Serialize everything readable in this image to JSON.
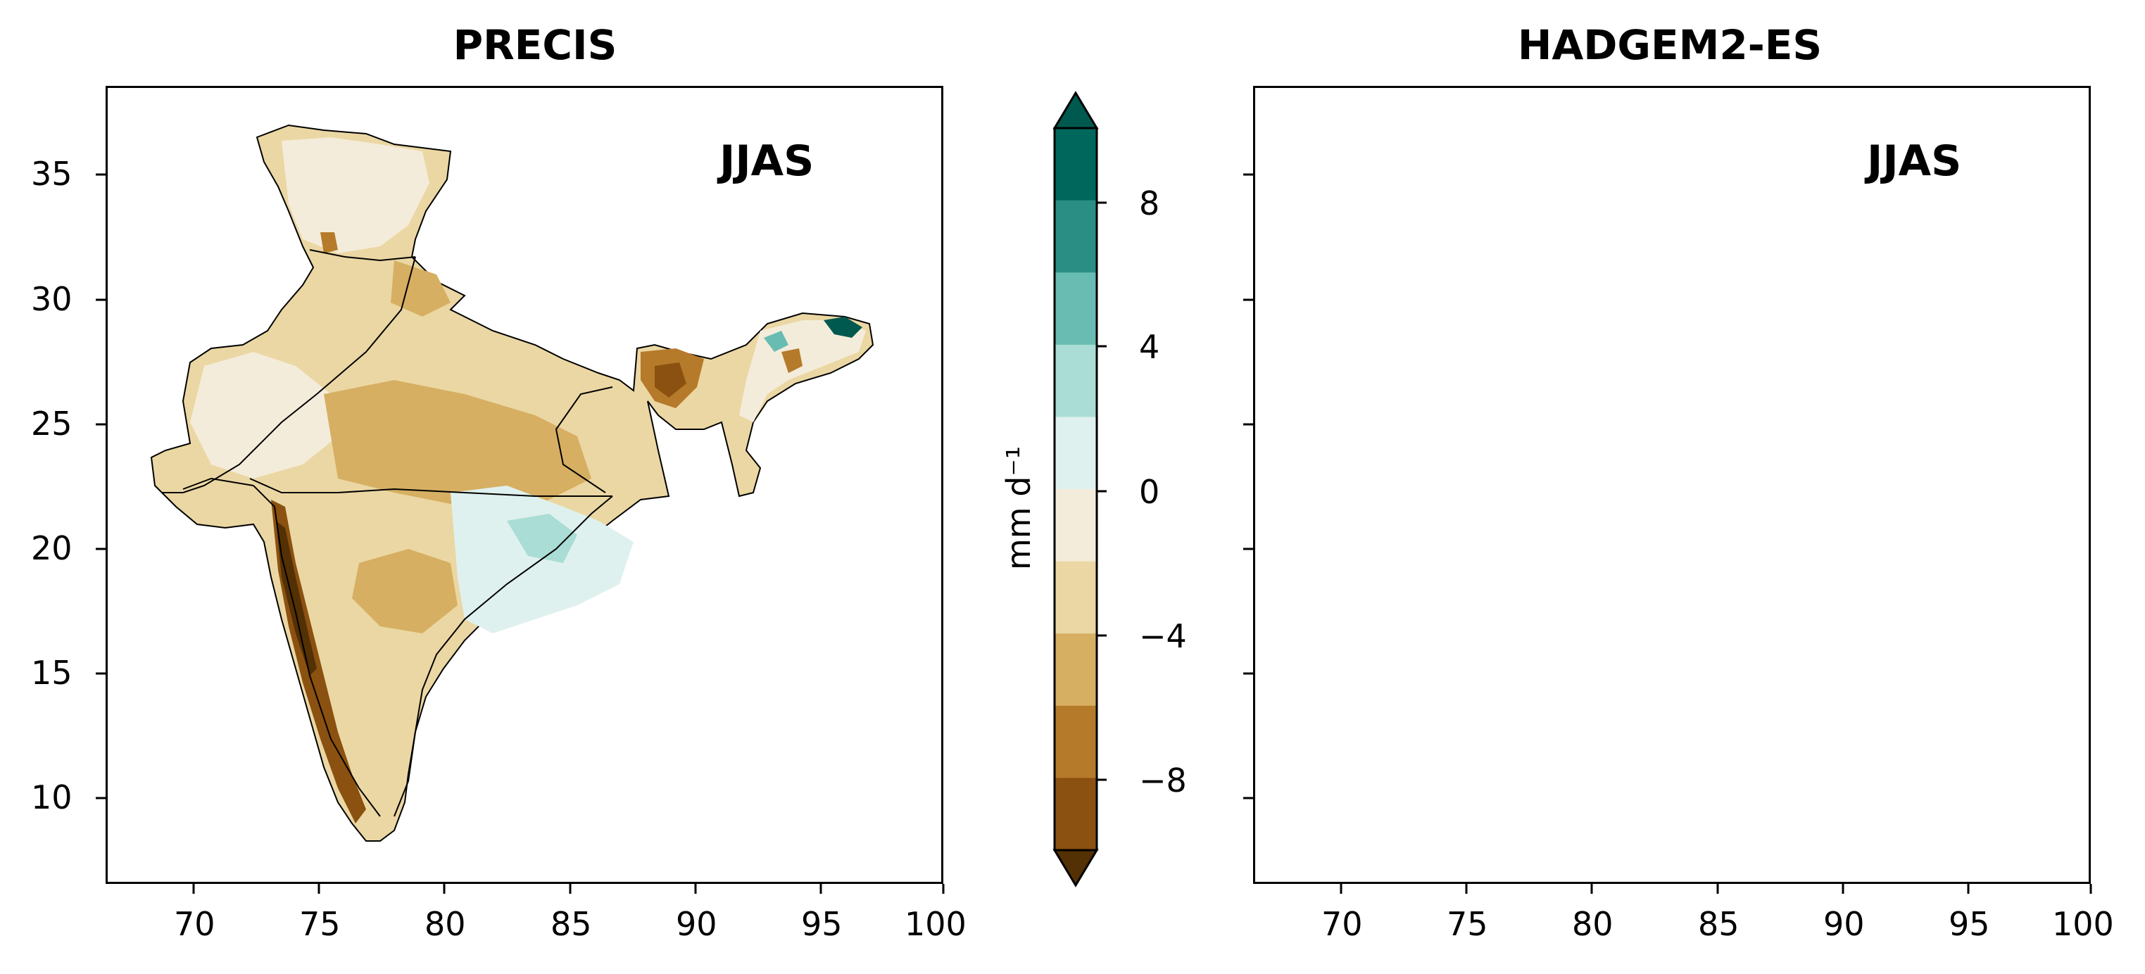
{
  "panels": [
    {
      "title": "PRECIS",
      "season_label": "JJAS",
      "x_ticks": [
        "70",
        "75",
        "80",
        "85",
        "90",
        "95",
        "100"
      ],
      "y_ticks": [
        "35",
        "30",
        "25",
        "20",
        "15",
        "10"
      ]
    },
    {
      "title": "HADGEM2-ES",
      "season_label": "JJAS",
      "x_ticks": [
        "70",
        "75",
        "80",
        "85",
        "90",
        "95",
        "100"
      ],
      "y_ticks": []
    }
  ],
  "colorbar": {
    "label": "mm d⁻¹",
    "ticks": [
      "8",
      "4",
      "0",
      "−4",
      "−8"
    ],
    "colors": [
      "#00594f",
      "#00675c",
      "#2a8e84",
      "#68bcb2",
      "#a9ddd5",
      "#dff1ee",
      "#f4ecda",
      "#ebd7a3",
      "#d6af62",
      "#b57a2a",
      "#8b5110",
      "#543005"
    ]
  },
  "legend_colors": {
    "boundary": "#000000",
    "land_dry": "#d6af62",
    "land_wet": "#68bcb2"
  }
}
